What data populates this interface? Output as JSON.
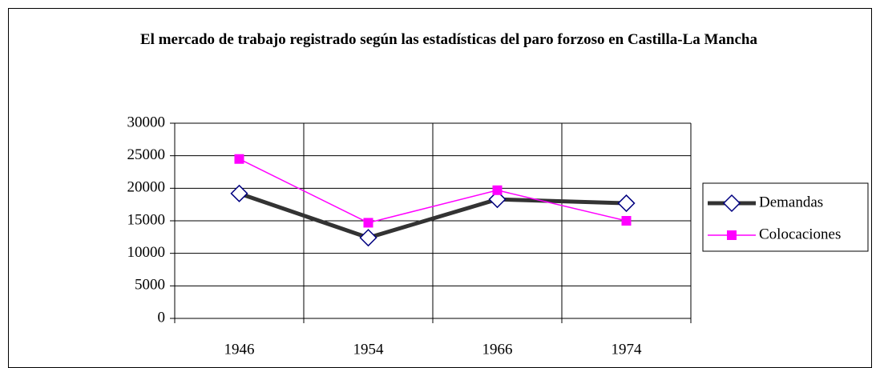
{
  "chart_data": {
    "type": "line",
    "title": "El mercado de trabajo registrado según las estadísticas del paro forzoso en Castilla-La Mancha",
    "categories": [
      "1946",
      "1954",
      "1966",
      "1974"
    ],
    "series": [
      {
        "name": "Demandas",
        "color": "#333333",
        "marker_color": "#000080",
        "values": [
          19200,
          12400,
          18300,
          17700
        ]
      },
      {
        "name": "Colocaciones",
        "color": "#ff00ff",
        "marker_color": "#ff00ff",
        "values": [
          24500,
          14700,
          19700,
          15000
        ]
      }
    ],
    "ylim": [
      0,
      30000
    ],
    "yticks": [
      0,
      5000,
      10000,
      15000,
      20000,
      25000,
      30000
    ],
    "grid": true,
    "legend": "right"
  }
}
